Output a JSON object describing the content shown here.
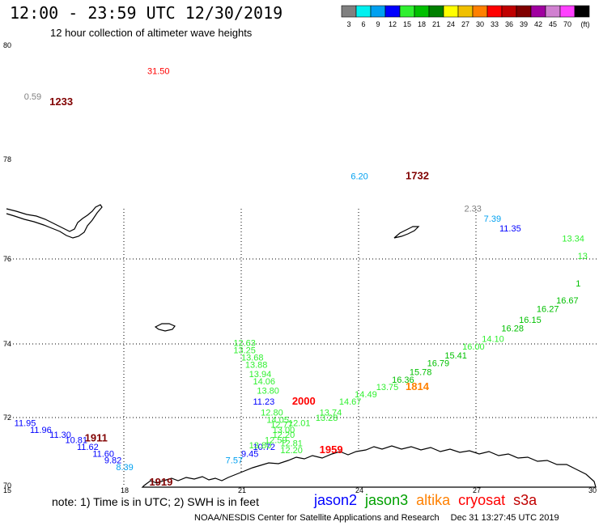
{
  "header": {
    "title": "12:00 - 23:59 UTC 12/30/2019",
    "subtitle": "12 hour collection of altimeter wave heights"
  },
  "colorbar": {
    "bins": [
      {
        "color": "#808080",
        "label": "3"
      },
      {
        "color": "#00f0f0",
        "label": "6"
      },
      {
        "color": "#00a0f0",
        "label": "9"
      },
      {
        "color": "#0000ff",
        "label": "12"
      },
      {
        "color": "#30f030",
        "label": "15"
      },
      {
        "color": "#00c000",
        "label": "18"
      },
      {
        "color": "#008000",
        "label": "21"
      },
      {
        "color": "#ffff00",
        "label": "24"
      },
      {
        "color": "#f0c000",
        "label": "27"
      },
      {
        "color": "#ff8000",
        "label": "30"
      },
      {
        "color": "#ff0000",
        "label": "33"
      },
      {
        "color": "#c00000",
        "label": "36"
      },
      {
        "color": "#800000",
        "label": "39"
      },
      {
        "color": "#a000a0",
        "label": "42"
      },
      {
        "color": "#d080d0",
        "label": "45"
      },
      {
        "color": "#ff40ff",
        "label": "70"
      },
      {
        "color": "#000000",
        "label": "(ft)"
      }
    ]
  },
  "axes": {
    "lat_ticks": [
      {
        "lat": 80,
        "label": "80"
      },
      {
        "lat": 78,
        "label": "78"
      },
      {
        "lat": 76,
        "label": "76"
      },
      {
        "lat": 74,
        "label": "74"
      },
      {
        "lat": 72,
        "label": "72"
      },
      {
        "lat": 70,
        "label": "70"
      }
    ],
    "lon_ticks": [
      {
        "lon": 15,
        "label": "15"
      },
      {
        "lon": 18,
        "label": "18"
      },
      {
        "lon": 21,
        "label": "21"
      },
      {
        "lon": 24,
        "label": "24"
      },
      {
        "lon": 27,
        "label": "27"
      },
      {
        "lon": 30,
        "label": "30"
      }
    ]
  },
  "observations": [
    {
      "lon": 15.45,
      "lat": 79.05,
      "text": "0.59",
      "color": "#808080"
    },
    {
      "lon": 18.6,
      "lat": 79.5,
      "text": "31.50",
      "color": "#ff0000"
    },
    {
      "lon": 23.8,
      "lat": 77.6,
      "text": "6.20",
      "color": "#00a0f0"
    },
    {
      "lon": 26.7,
      "lat": 76.95,
      "text": "2.33",
      "color": "#808080"
    },
    {
      "lon": 27.2,
      "lat": 76.75,
      "text": "7.39",
      "color": "#00a0f0"
    },
    {
      "lon": 27.6,
      "lat": 76.55,
      "text": "11.35",
      "color": "#0000ff"
    },
    {
      "lon": 29.2,
      "lat": 76.35,
      "text": "13.34",
      "color": "#30f030"
    },
    {
      "lon": 15.2,
      "lat": 71.75,
      "text": "11.95",
      "color": "#0000ff"
    },
    {
      "lon": 15.6,
      "lat": 71.55,
      "text": "11.96",
      "color": "#0000ff"
    },
    {
      "lon": 16.1,
      "lat": 71.4,
      "text": "11.30",
      "color": "#0000ff"
    },
    {
      "lon": 16.5,
      "lat": 71.25,
      "text": "10.81",
      "color": "#0000ff"
    },
    {
      "lon": 16.8,
      "lat": 71.05,
      "text": "11.62",
      "color": "#0000ff"
    },
    {
      "lon": 17.2,
      "lat": 70.85,
      "text": "11.60",
      "color": "#0000ff"
    },
    {
      "lon": 17.5,
      "lat": 70.65,
      "text": "9.82",
      "color": "#0000ff"
    },
    {
      "lon": 17.8,
      "lat": 70.45,
      "text": "8.39",
      "color": "#00a0f0"
    },
    {
      "lon": 20.6,
      "lat": 70.65,
      "text": "7.57",
      "color": "#00a0f0"
    },
    {
      "lon": 21.0,
      "lat": 70.85,
      "text": "9.45",
      "color": "#0000ff"
    },
    {
      "lon": 21.3,
      "lat": 71.05,
      "text": "10.72",
      "color": "#0000ff"
    },
    {
      "lon": 21.3,
      "lat": 72.35,
      "text": "11.23",
      "color": "#0000ff"
    },
    {
      "lon": 20.8,
      "lat": 73.95,
      "text": "12.63",
      "color": "#30f030"
    },
    {
      "lon": 20.8,
      "lat": 73.75,
      "text": "13.25",
      "color": "#30f030"
    },
    {
      "lon": 21.0,
      "lat": 73.55,
      "text": "13.68",
      "color": "#30f030"
    },
    {
      "lon": 21.1,
      "lat": 73.35,
      "text": "13.88",
      "color": "#30f030"
    },
    {
      "lon": 21.2,
      "lat": 73.1,
      "text": "13.94",
      "color": "#30f030"
    },
    {
      "lon": 21.3,
      "lat": 72.9,
      "text": "14.06",
      "color": "#30f030"
    },
    {
      "lon": 21.4,
      "lat": 72.65,
      "text": "13.80",
      "color": "#30f030"
    },
    {
      "lon": 21.5,
      "lat": 72.05,
      "text": "12.80",
      "color": "#30f030"
    },
    {
      "lon": 21.65,
      "lat": 71.85,
      "text": "14.05",
      "color": "#30f030"
    },
    {
      "lon": 21.75,
      "lat": 71.7,
      "text": "12.77",
      "color": "#30f030"
    },
    {
      "lon": 22.2,
      "lat": 71.75,
      "text": "12.01",
      "color": "#30f030"
    },
    {
      "lon": 21.8,
      "lat": 71.55,
      "text": "13.00",
      "color": "#30f030"
    },
    {
      "lon": 21.8,
      "lat": 71.4,
      "text": "12.20",
      "color": "#30f030"
    },
    {
      "lon": 21.6,
      "lat": 71.25,
      "text": "12.59",
      "color": "#30f030"
    },
    {
      "lon": 22.0,
      "lat": 71.15,
      "text": "12.81",
      "color": "#30f030"
    },
    {
      "lon": 21.2,
      "lat": 71.1,
      "text": "13.80",
      "color": "#30f030"
    },
    {
      "lon": 22.0,
      "lat": 70.95,
      "text": "12.20",
      "color": "#30f030"
    },
    {
      "lon": 22.9,
      "lat": 71.9,
      "text": "13.28",
      "color": "#30f030"
    },
    {
      "lon": 23.0,
      "lat": 72.05,
      "text": "13.74",
      "color": "#30f030"
    },
    {
      "lon": 23.5,
      "lat": 72.35,
      "text": "14.67",
      "color": "#30f030"
    },
    {
      "lon": 23.9,
      "lat": 72.55,
      "text": "14.49",
      "color": "#30f030"
    },
    {
      "lon": 24.45,
      "lat": 72.75,
      "text": "13.75",
      "color": "#30f030"
    },
    {
      "lon": 24.85,
      "lat": 72.95,
      "text": "16.36",
      "color": "#00c000"
    },
    {
      "lon": 25.3,
      "lat": 73.15,
      "text": "15.78",
      "color": "#00c000"
    },
    {
      "lon": 25.75,
      "lat": 73.4,
      "text": "16.79",
      "color": "#00c000"
    },
    {
      "lon": 26.2,
      "lat": 73.6,
      "text": "15.41",
      "color": "#00c000"
    },
    {
      "lon": 26.65,
      "lat": 73.85,
      "text": "16.00",
      "color": "#30f030"
    },
    {
      "lon": 27.15,
      "lat": 74.05,
      "text": "14.10",
      "color": "#30f030"
    },
    {
      "lon": 27.65,
      "lat": 74.3,
      "text": "16.28",
      "color": "#00c000"
    },
    {
      "lon": 28.1,
      "lat": 74.5,
      "text": "16.15",
      "color": "#00c000"
    },
    {
      "lon": 28.55,
      "lat": 74.75,
      "text": "16.27",
      "color": "#00c000"
    },
    {
      "lon": 29.05,
      "lat": 74.95,
      "text": "16.67",
      "color": "#00c000"
    },
    {
      "lon": 29.55,
      "lat": 75.35,
      "text": "1",
      "color": "#00c000"
    },
    {
      "lon": 29.6,
      "lat": 76.0,
      "text": "13",
      "color": "#30f030"
    }
  ],
  "pass_times": [
    {
      "lon": 16.1,
      "lat": 78.95,
      "text": "1233",
      "color": "#800000"
    },
    {
      "lon": 25.2,
      "lat": 77.6,
      "text": "1732",
      "color": "#800000"
    },
    {
      "lon": 22.3,
      "lat": 72.35,
      "text": "2000",
      "color": "#ff0000"
    },
    {
      "lon": 25.2,
      "lat": 72.75,
      "text": "1814",
      "color": "#ff8000"
    },
    {
      "lon": 17.0,
      "lat": 71.3,
      "text": "1911",
      "color": "#800000"
    },
    {
      "lon": 23.0,
      "lat": 70.95,
      "text": "1959",
      "color": "#ff0000"
    },
    {
      "lon": 18.65,
      "lat": 70.0,
      "text": "1919",
      "color": "#800000"
    }
  ],
  "legend": {
    "note": "note: 1) Time is in UTC; 2) SWH is in feet",
    "satellites": [
      {
        "name": "jason2",
        "color": "#0000ff"
      },
      {
        "name": "jason3",
        "color": "#00a000"
      },
      {
        "name": "altika",
        "color": "#ff8000"
      },
      {
        "name": "cryosat",
        "color": "#ff0000"
      },
      {
        "name": "s3a",
        "color": "#c00000"
      }
    ]
  },
  "footer": {
    "credit": "NOAA/NESDIS Center for Satellite Applications and Research",
    "timestamp": "Dec 31 13:27:45 UTC 2019"
  }
}
